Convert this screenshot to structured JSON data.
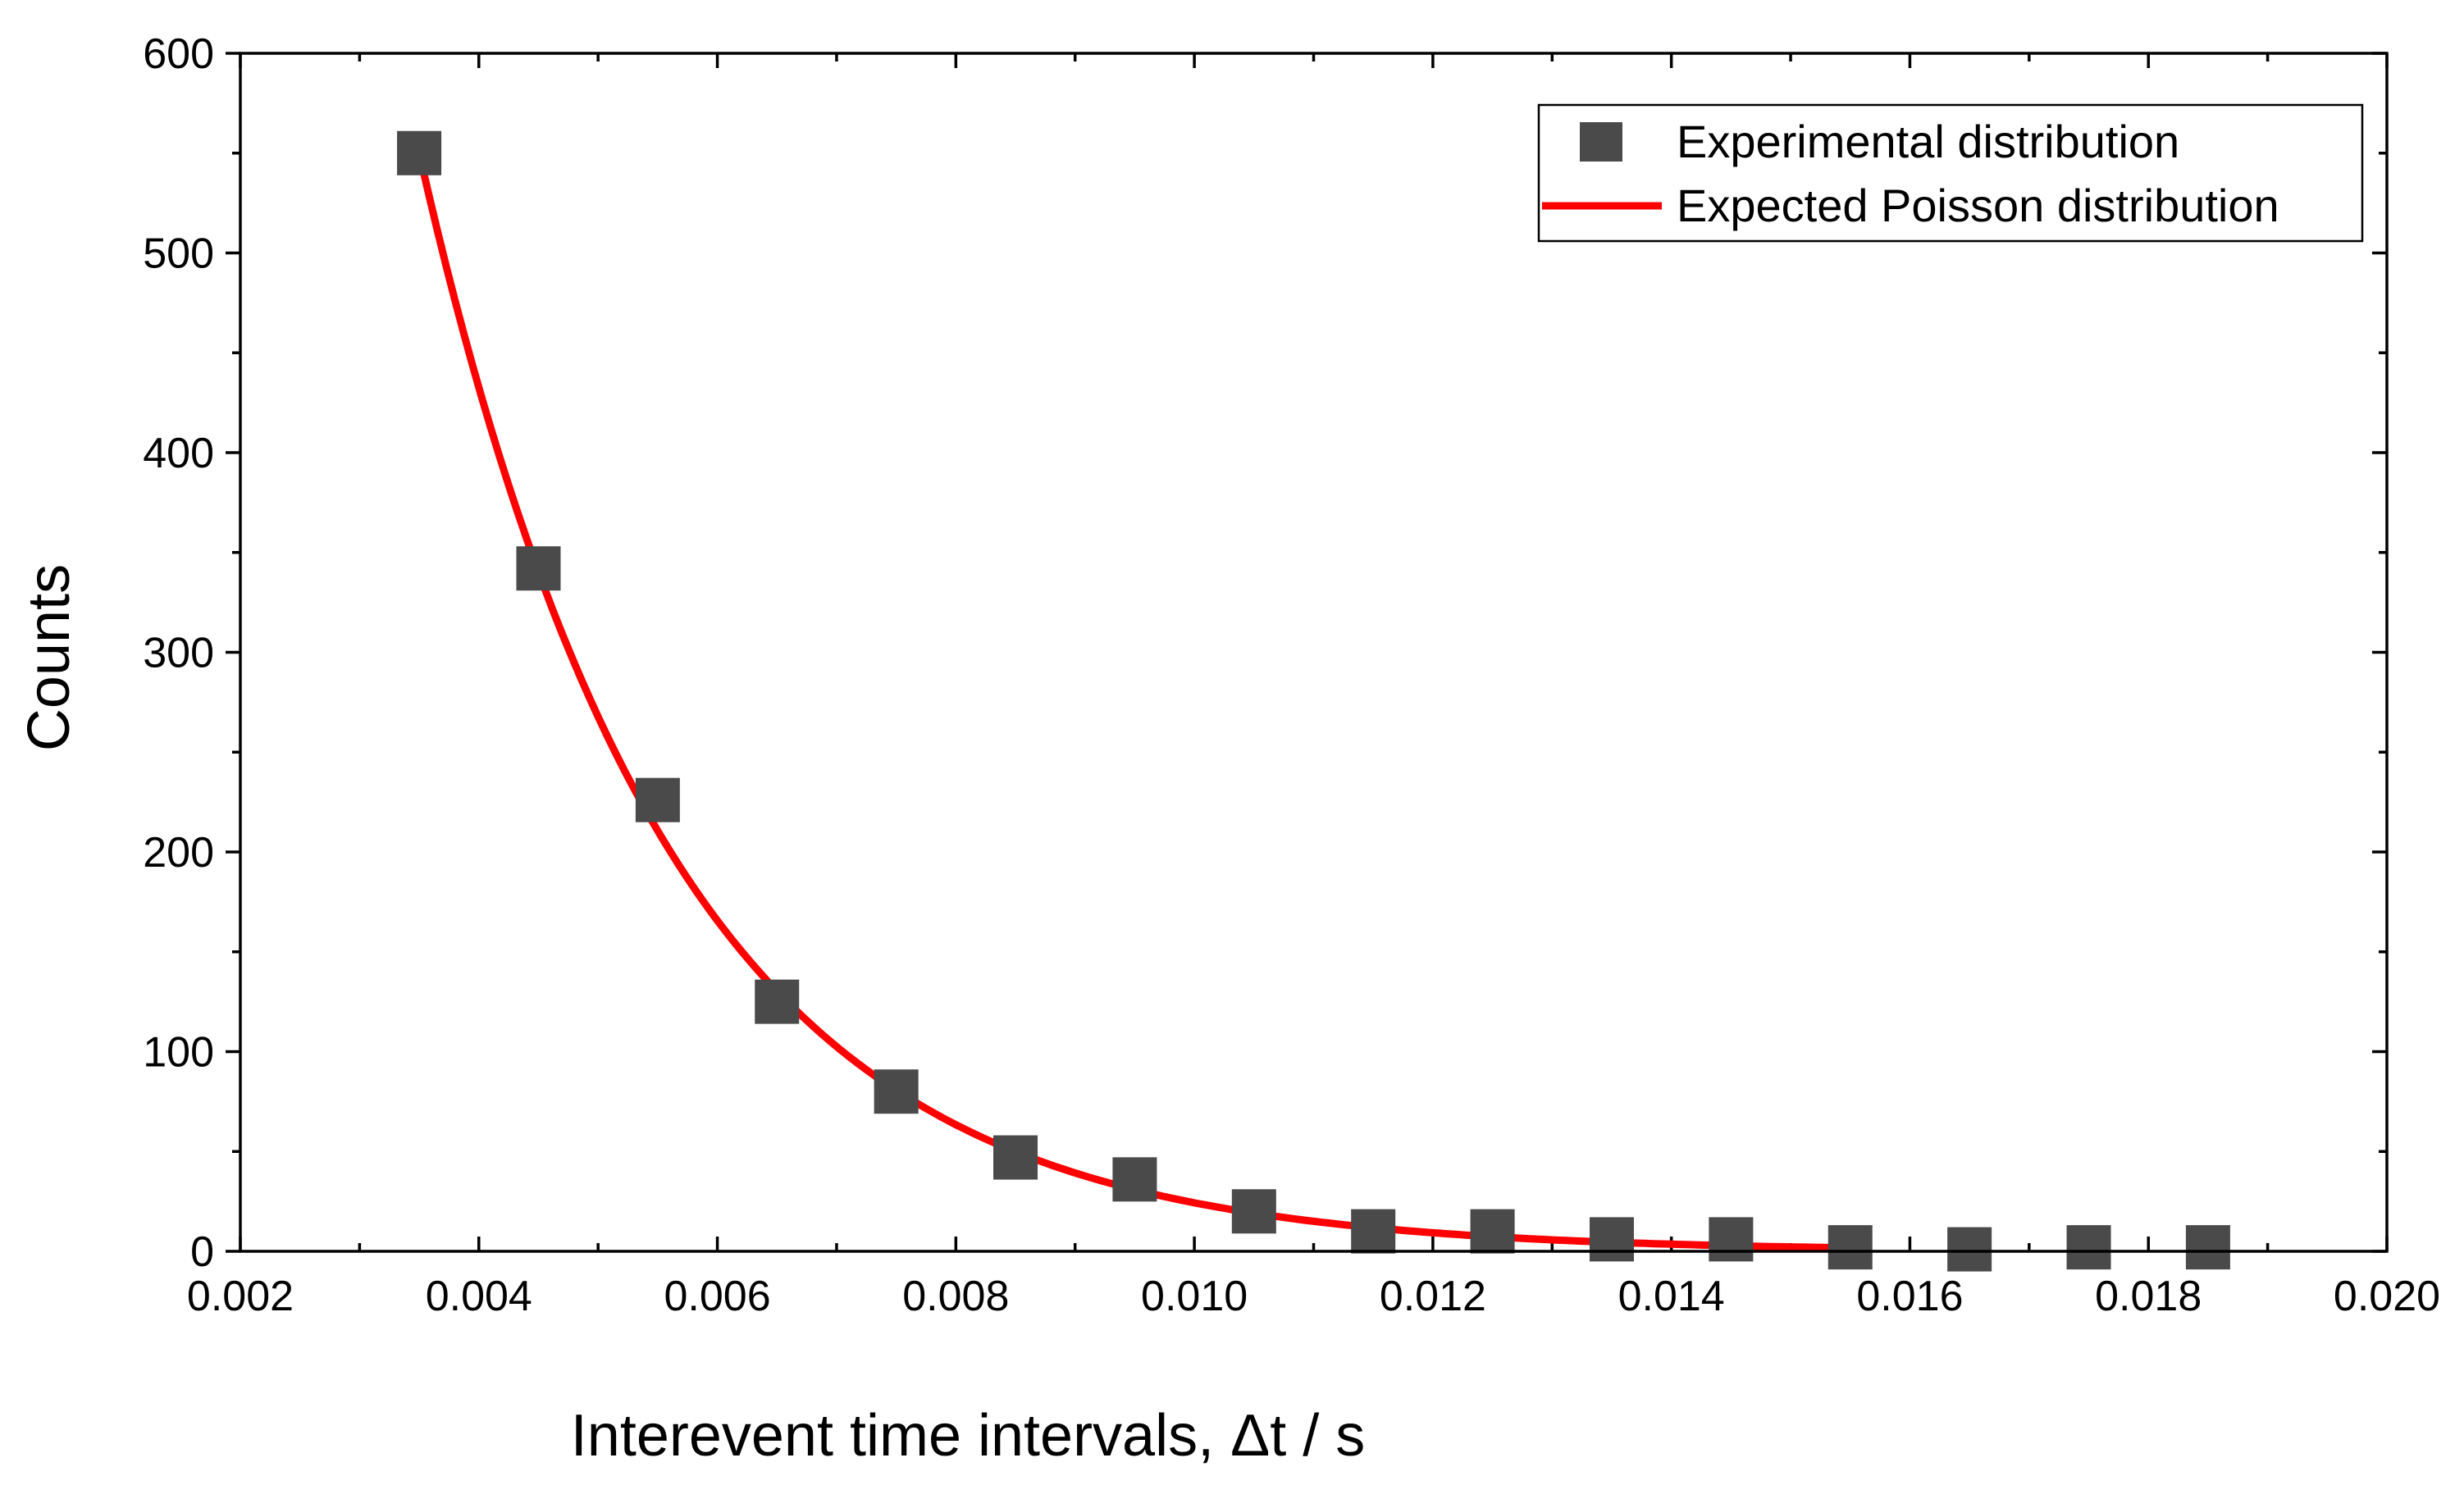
{
  "chart_data": {
    "type": "scatter",
    "title": "",
    "xlabel": "Interevent time intervals, Δt / s",
    "ylabel": "Counts",
    "xlim": [
      0.002,
      0.02
    ],
    "ylim": [
      0,
      600
    ],
    "x_ticks": [
      0.002,
      0.004,
      0.006,
      0.008,
      0.01,
      0.012,
      0.014,
      0.016,
      0.018,
      0.02
    ],
    "x_tick_labels": [
      "0.002",
      "0.004",
      "0.006",
      "0.008",
      "0.010",
      "0.012",
      "0.014",
      "0.016",
      "0.018",
      "0.020"
    ],
    "y_ticks": [
      0,
      100,
      200,
      300,
      400,
      500,
      600
    ],
    "y_tick_labels": [
      "0",
      "100",
      "200",
      "300",
      "400",
      "500",
      "600"
    ],
    "grid": false,
    "legend_position": "top-right",
    "series": [
      {
        "name": "Experimental distribution",
        "kind": "scatter",
        "marker": "square",
        "color": "#4a4a4a",
        "x": [
          0.0035,
          0.0045,
          0.0055,
          0.0065,
          0.0075,
          0.0085,
          0.0095,
          0.0105,
          0.0115,
          0.0125,
          0.0135,
          0.0145,
          0.0155,
          0.0165,
          0.0175,
          0.0185
        ],
        "y": [
          550,
          342,
          226,
          125,
          80,
          47,
          36,
          20,
          10,
          10,
          6,
          6,
          2,
          1,
          2,
          2
        ]
      },
      {
        "name": "Expected Poisson distribution",
        "kind": "line",
        "color": "#ff0000",
        "model": "exponential",
        "x_start": 0.0035,
        "x_end": 0.0155,
        "amplitude": 550,
        "decay_rate_per_s": 480
      }
    ]
  }
}
